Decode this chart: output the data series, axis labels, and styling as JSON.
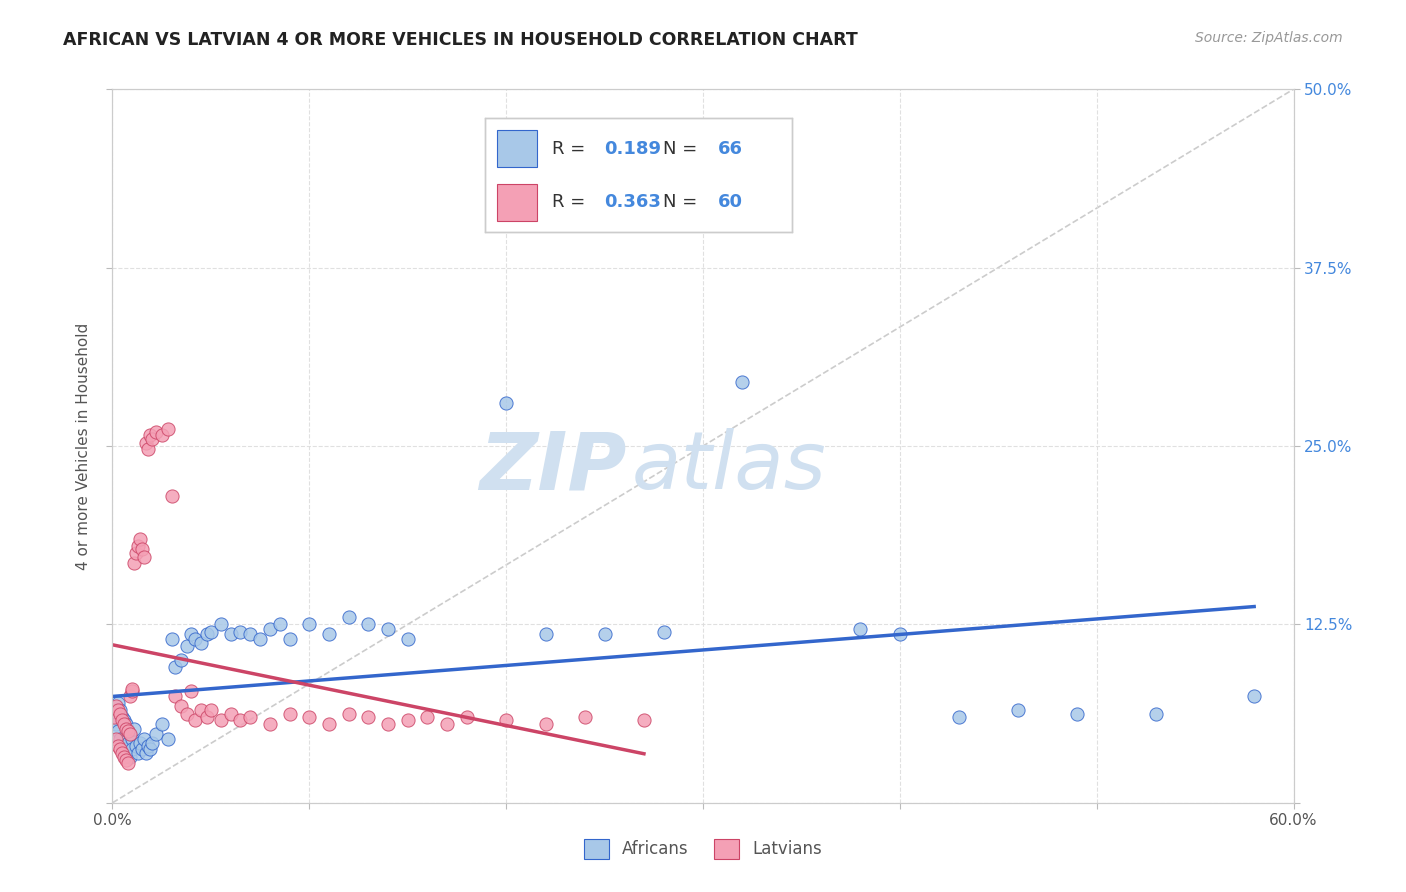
{
  "title": "AFRICAN VS LATVIAN 4 OR MORE VEHICLES IN HOUSEHOLD CORRELATION CHART",
  "source": "Source: ZipAtlas.com",
  "ylabel": "4 or more Vehicles in Household",
  "xlim": [
    0.0,
    0.6
  ],
  "ylim": [
    0.0,
    0.5
  ],
  "african_R": 0.189,
  "african_N": 66,
  "latvian_R": 0.363,
  "latvian_N": 60,
  "african_color": "#a8c8e8",
  "latvian_color": "#f4a0b5",
  "african_line_color": "#3366cc",
  "latvian_line_color": "#cc4466",
  "diagonal_color": "#cccccc",
  "grid_color": "#dddddd",
  "watermark_color": "#d0e0f0",
  "background_color": "#ffffff",
  "title_color": "#222222",
  "source_color": "#999999",
  "tick_color": "#4488dd",
  "african_x": [
    0.001,
    0.002,
    0.003,
    0.003,
    0.004,
    0.004,
    0.005,
    0.005,
    0.006,
    0.006,
    0.007,
    0.007,
    0.008,
    0.008,
    0.009,
    0.009,
    0.01,
    0.01,
    0.011,
    0.012,
    0.013,
    0.014,
    0.015,
    0.016,
    0.017,
    0.018,
    0.019,
    0.02,
    0.022,
    0.025,
    0.028,
    0.03,
    0.032,
    0.035,
    0.038,
    0.04,
    0.042,
    0.045,
    0.048,
    0.05,
    0.055,
    0.06,
    0.065,
    0.07,
    0.075,
    0.08,
    0.085,
    0.09,
    0.1,
    0.11,
    0.12,
    0.13,
    0.14,
    0.15,
    0.2,
    0.22,
    0.25,
    0.28,
    0.32,
    0.38,
    0.4,
    0.43,
    0.46,
    0.49,
    0.53,
    0.58
  ],
  "african_y": [
    0.06,
    0.055,
    0.07,
    0.05,
    0.065,
    0.045,
    0.06,
    0.04,
    0.058,
    0.035,
    0.055,
    0.038,
    0.05,
    0.042,
    0.048,
    0.032,
    0.045,
    0.038,
    0.052,
    0.04,
    0.035,
    0.042,
    0.038,
    0.045,
    0.035,
    0.04,
    0.038,
    0.042,
    0.048,
    0.055,
    0.045,
    0.115,
    0.095,
    0.1,
    0.11,
    0.118,
    0.115,
    0.112,
    0.118,
    0.12,
    0.125,
    0.118,
    0.12,
    0.118,
    0.115,
    0.122,
    0.125,
    0.115,
    0.125,
    0.118,
    0.13,
    0.125,
    0.122,
    0.115,
    0.28,
    0.118,
    0.118,
    0.12,
    0.295,
    0.122,
    0.118,
    0.06,
    0.065,
    0.062,
    0.062,
    0.075
  ],
  "latvian_x": [
    0.001,
    0.002,
    0.002,
    0.003,
    0.003,
    0.004,
    0.004,
    0.005,
    0.005,
    0.006,
    0.006,
    0.007,
    0.007,
    0.008,
    0.008,
    0.009,
    0.009,
    0.01,
    0.01,
    0.011,
    0.012,
    0.013,
    0.014,
    0.015,
    0.016,
    0.017,
    0.018,
    0.019,
    0.02,
    0.022,
    0.025,
    0.028,
    0.03,
    0.032,
    0.035,
    0.038,
    0.04,
    0.042,
    0.045,
    0.048,
    0.05,
    0.055,
    0.06,
    0.065,
    0.07,
    0.08,
    0.09,
    0.1,
    0.11,
    0.12,
    0.13,
    0.14,
    0.15,
    0.16,
    0.17,
    0.18,
    0.2,
    0.22,
    0.24,
    0.27
  ],
  "latvian_y": [
    0.06,
    0.068,
    0.045,
    0.065,
    0.04,
    0.062,
    0.038,
    0.058,
    0.035,
    0.055,
    0.032,
    0.052,
    0.03,
    0.05,
    0.028,
    0.048,
    0.075,
    0.078,
    0.08,
    0.168,
    0.175,
    0.18,
    0.185,
    0.178,
    0.172,
    0.252,
    0.248,
    0.258,
    0.255,
    0.26,
    0.258,
    0.262,
    0.215,
    0.075,
    0.068,
    0.062,
    0.078,
    0.058,
    0.065,
    0.06,
    0.065,
    0.058,
    0.062,
    0.058,
    0.06,
    0.055,
    0.062,
    0.06,
    0.055,
    0.062,
    0.06,
    0.055,
    0.058,
    0.06,
    0.055,
    0.06,
    0.058,
    0.055,
    0.06,
    0.058
  ]
}
